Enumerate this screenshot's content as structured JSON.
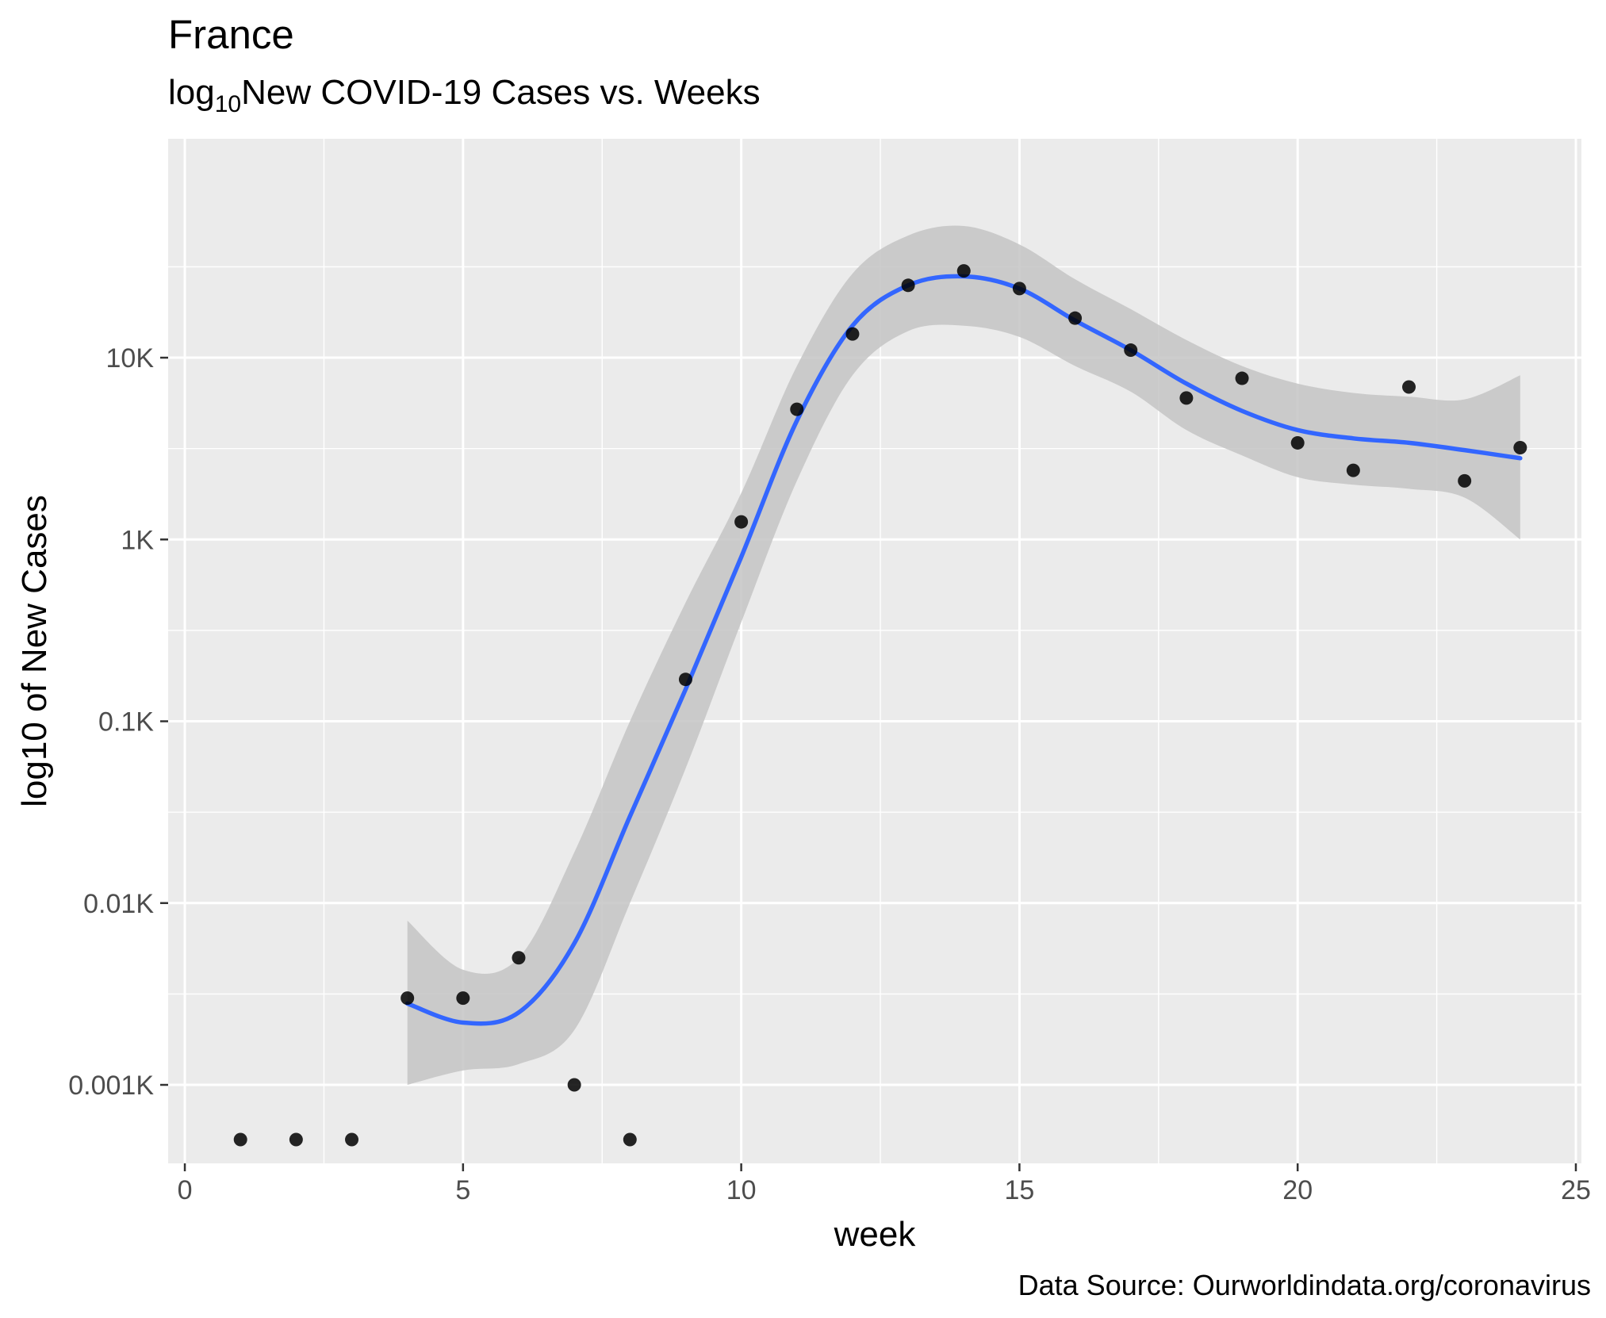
{
  "chart_data": {
    "type": "scatter",
    "title": "France",
    "subtitle": {
      "prefix": "log",
      "subscript": "10",
      "rest": "New COVID-19 Cases vs. Weeks"
    },
    "caption": "Data Source: Ourworldindata.org/coronavirus",
    "xlabel": "week",
    "ylabel": "log10 of New Cases",
    "x_scale": "linear",
    "y_scale": "log10",
    "xlim": [
      -0.3,
      25.1
    ],
    "ylim": [
      0.37,
      160000
    ],
    "x_ticks": [
      {
        "value": 0,
        "label": "0"
      },
      {
        "value": 5,
        "label": "5"
      },
      {
        "value": 10,
        "label": "10"
      },
      {
        "value": 15,
        "label": "15"
      },
      {
        "value": 20,
        "label": "20"
      },
      {
        "value": 25,
        "label": "25"
      }
    ],
    "y_ticks": [
      {
        "value": 1,
        "label": "0.001K"
      },
      {
        "value": 10,
        "label": "0.01K"
      },
      {
        "value": 100,
        "label": "0.1K"
      },
      {
        "value": 1000,
        "label": "1K"
      },
      {
        "value": 10000,
        "label": "10K"
      }
    ],
    "grid": true,
    "legend": "none",
    "colors": {
      "panel": "#ebebeb",
      "grid": "#ffffff",
      "points": "#000000",
      "smooth_line": "#3366ff",
      "ribbon": "#c4c4c4"
    },
    "points": [
      {
        "x": 1,
        "y": 0.5
      },
      {
        "x": 2,
        "y": 0.5
      },
      {
        "x": 3,
        "y": 0.5
      },
      {
        "x": 4,
        "y": 3
      },
      {
        "x": 5,
        "y": 3
      },
      {
        "x": 6,
        "y": 5
      },
      {
        "x": 7,
        "y": 1
      },
      {
        "x": 8,
        "y": 0.5
      },
      {
        "x": 9,
        "y": 170
      },
      {
        "x": 10,
        "y": 1250
      },
      {
        "x": 11,
        "y": 5200
      },
      {
        "x": 12,
        "y": 13500
      },
      {
        "x": 13,
        "y": 25000
      },
      {
        "x": 14,
        "y": 30000
      },
      {
        "x": 15,
        "y": 24000
      },
      {
        "x": 16,
        "y": 16500
      },
      {
        "x": 17,
        "y": 11000
      },
      {
        "x": 18,
        "y": 6000
      },
      {
        "x": 19,
        "y": 7700
      },
      {
        "x": 20,
        "y": 3400
      },
      {
        "x": 21,
        "y": 2400
      },
      {
        "x": 22,
        "y": 6900
      },
      {
        "x": 23,
        "y": 2100
      },
      {
        "x": 24,
        "y": 3200
      }
    ],
    "smooth": [
      {
        "x": 4,
        "y": 2.8,
        "lo": 1.0,
        "hi": 8.0
      },
      {
        "x": 5,
        "y": 2.2,
        "lo": 1.2,
        "hi": 4.3
      },
      {
        "x": 6,
        "y": 2.5,
        "lo": 1.3,
        "hi": 5.0
      },
      {
        "x": 7,
        "y": 6.0,
        "lo": 2.0,
        "hi": 19
      },
      {
        "x": 8,
        "y": 30,
        "lo": 10,
        "hi": 100
      },
      {
        "x": 9,
        "y": 150,
        "lo": 55,
        "hi": 450
      },
      {
        "x": 10,
        "y": 800,
        "lo": 350,
        "hi": 1800
      },
      {
        "x": 11,
        "y": 4500,
        "lo": 2100,
        "hi": 9000
      },
      {
        "x": 12,
        "y": 15000,
        "lo": 8000,
        "hi": 29000
      },
      {
        "x": 13,
        "y": 25000,
        "lo": 14000,
        "hi": 47000
      },
      {
        "x": 14,
        "y": 28000,
        "lo": 15000,
        "hi": 53000
      },
      {
        "x": 15,
        "y": 24000,
        "lo": 13000,
        "hi": 42000
      },
      {
        "x": 16,
        "y": 16000,
        "lo": 9000,
        "hi": 27000
      },
      {
        "x": 17,
        "y": 11000,
        "lo": 6500,
        "hi": 18500
      },
      {
        "x": 18,
        "y": 7200,
        "lo": 4000,
        "hi": 12500
      },
      {
        "x": 19,
        "y": 5100,
        "lo": 2900,
        "hi": 9000
      },
      {
        "x": 20,
        "y": 4000,
        "lo": 2200,
        "hi": 7200
      },
      {
        "x": 21,
        "y": 3600,
        "lo": 2000,
        "hi": 6400
      },
      {
        "x": 22,
        "y": 3400,
        "lo": 1900,
        "hi": 6100
      },
      {
        "x": 23,
        "y": 3100,
        "lo": 1700,
        "hi": 5900
      },
      {
        "x": 24,
        "y": 2800,
        "lo": 1000,
        "hi": 8000
      }
    ]
  }
}
